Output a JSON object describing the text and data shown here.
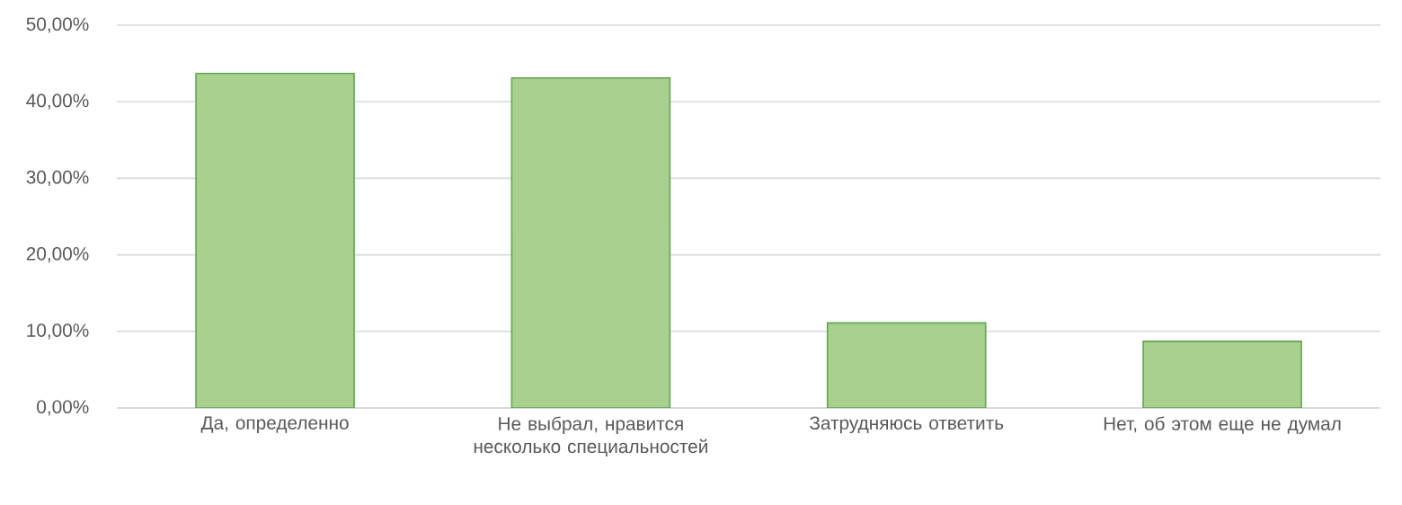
{
  "chart_data": {
    "type": "bar",
    "categories": [
      "Да, определенно",
      "Не выбрал, нравится несколько специальностей",
      "Затрудняюсь ответить",
      "Нет, об этом еще не думал"
    ],
    "values": [
      43.7,
      43.1,
      11.1,
      8.7
    ],
    "color": "#a9d08e",
    "ylim": [
      0,
      50
    ],
    "yticks": [
      {
        "value": 0,
        "label": "0,00%"
      },
      {
        "value": 10,
        "label": "10,00%"
      },
      {
        "value": 20,
        "label": "20,00%"
      },
      {
        "value": 30,
        "label": "30,00%"
      },
      {
        "value": 40,
        "label": "40,00%"
      },
      {
        "value": 50,
        "label": "50,00%"
      }
    ],
    "grid": "y"
  }
}
